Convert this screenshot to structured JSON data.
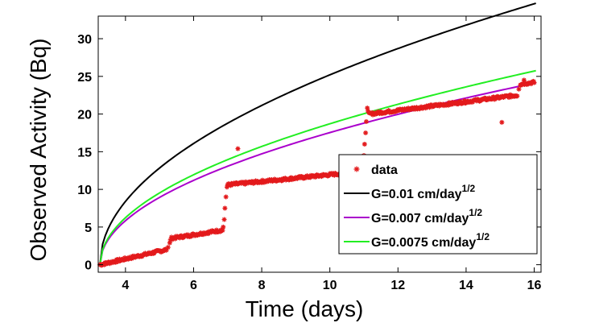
{
  "chart_data": {
    "type": "scatter",
    "xlabel": "Time (days)",
    "ylabel": "Observed Activity (Bq)",
    "xlim": [
      3.2,
      16.2
    ],
    "ylim": [
      -1,
      33
    ],
    "xticks": [
      4,
      6,
      8,
      10,
      12,
      14,
      16
    ],
    "yticks": [
      0,
      5,
      10,
      15,
      20,
      25,
      30
    ],
    "grid": false,
    "legend_position": "bottom-right",
    "series": [
      {
        "name": "data",
        "type": "scatter",
        "marker": "*",
        "color": "#e31a1c",
        "segments": [
          {
            "x": [
              3.25,
              5.2
            ],
            "y": [
              0.0,
              2.0
            ]
          },
          {
            "x": [
              5.35,
              6.85
            ],
            "y": [
              3.5,
              4.6
            ]
          },
          {
            "x": [
              7.0,
              11.0
            ],
            "y": [
              10.6,
              12.4
            ]
          },
          {
            "x": [
              11.15,
              15.5
            ],
            "y": [
              20.0,
              22.5
            ]
          },
          {
            "x": [
              15.6,
              16.0
            ],
            "y": [
              24.0,
              24.2
            ]
          }
        ],
        "points": [
          {
            "x": 5.25,
            "y": 2.3
          },
          {
            "x": 5.3,
            "y": 2.9
          },
          {
            "x": 5.32,
            "y": 3.3
          },
          {
            "x": 6.87,
            "y": 5.0
          },
          {
            "x": 6.9,
            "y": 6.0
          },
          {
            "x": 6.92,
            "y": 7.5
          },
          {
            "x": 6.95,
            "y": 9.0
          },
          {
            "x": 6.98,
            "y": 10.3
          },
          {
            "x": 7.3,
            "y": 15.4
          },
          {
            "x": 11.0,
            "y": 14.5
          },
          {
            "x": 11.02,
            "y": 16.0
          },
          {
            "x": 11.05,
            "y": 17.5
          },
          {
            "x": 11.07,
            "y": 19.0
          },
          {
            "x": 11.1,
            "y": 20.8
          },
          {
            "x": 11.12,
            "y": 20.4
          },
          {
            "x": 15.05,
            "y": 18.9
          },
          {
            "x": 15.55,
            "y": 23.3
          },
          {
            "x": 15.6,
            "y": 23.8
          },
          {
            "x": 15.7,
            "y": 24.5
          }
        ]
      },
      {
        "name": "G=0.01 cm/day",
        "name_sup": "1/2",
        "type": "line",
        "color": "#000000",
        "k": 9.7
      },
      {
        "name": "G=0.007 cm/day",
        "name_sup": "1/2",
        "type": "line",
        "color": "#aa00cc",
        "k": 6.75
      },
      {
        "name": "G=0.0075 cm/day",
        "name_sup": "1/2",
        "type": "line",
        "color": "#22ee22",
        "k": 7.2
      }
    ]
  }
}
